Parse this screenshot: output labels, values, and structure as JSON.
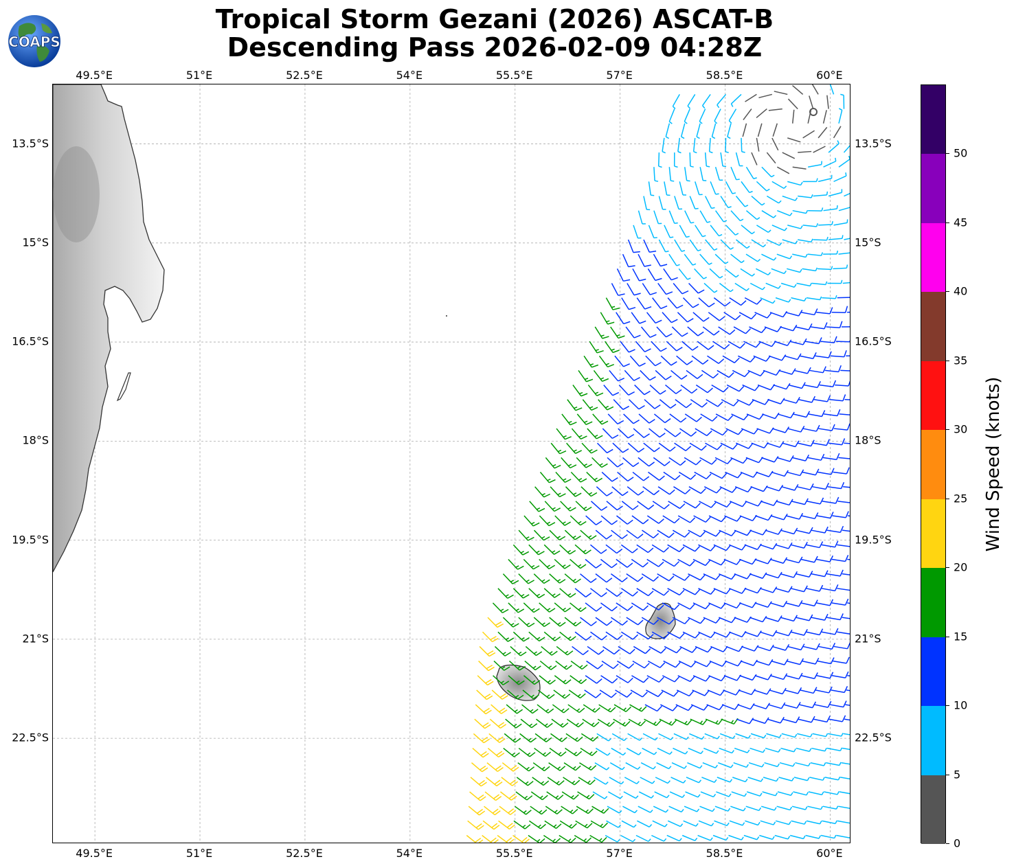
{
  "title": {
    "line1": "Tropical Storm Gezani (2026) ASCAT-B",
    "line2": "Descending Pass 2026-02-09 04:28Z"
  },
  "logo": {
    "text": "COAPS",
    "icon": "coaps-globe-logo"
  },
  "map": {
    "lon_range": [
      48.9,
      60.3
    ],
    "lat_range": [
      -24.1,
      -12.6
    ],
    "lon_ticks": [
      "49.5°E",
      "51°E",
      "52.5°E",
      "54°E",
      "55.5°E",
      "57°E",
      "58.5°E",
      "60°E"
    ],
    "lat_ticks": [
      "13.5°S",
      "15°S",
      "16.5°S",
      "18°S",
      "19.5°S",
      "21°S",
      "22.5°S"
    ],
    "grid": true,
    "land_features": [
      "madagascar-coast",
      "reunion-island",
      "mauritius-island"
    ]
  },
  "colorbar": {
    "label": "Wind Speed (knots)",
    "ticks": [
      "0",
      "5",
      "10",
      "15",
      "20",
      "25",
      "30",
      "35",
      "40",
      "45",
      "50"
    ],
    "bins": [
      {
        "range": [
          0,
          5
        ],
        "color": "#555555"
      },
      {
        "range": [
          5,
          10
        ],
        "color": "#00bbff"
      },
      {
        "range": [
          10,
          15
        ],
        "color": "#0033ff"
      },
      {
        "range": [
          15,
          20
        ],
        "color": "#009900"
      },
      {
        "range": [
          20,
          25
        ],
        "color": "#ffd511"
      },
      {
        "range": [
          25,
          30
        ],
        "color": "#ff8c0f"
      },
      {
        "range": [
          30,
          35
        ],
        "color": "#ff1111"
      },
      {
        "range": [
          35,
          40
        ],
        "color": "#833a2c"
      },
      {
        "range": [
          40,
          45
        ],
        "color": "#ff00ee"
      },
      {
        "range": [
          45,
          50
        ],
        "color": "#8800bb"
      },
      {
        "range": [
          50,
          55
        ],
        "color": "#330066"
      }
    ]
  },
  "chart_data": {
    "type": "wind-barb-map",
    "storm": "Tropical Storm Gezani",
    "sensor": "ASCAT-B",
    "pass": "Descending",
    "time": "2026-02-09 04:28Z",
    "units": "knots",
    "center_approx": {
      "lon": 59.4,
      "lat": -13.2
    },
    "swath_west_edge": [
      [
        57.9,
        -12.6
      ],
      [
        57.1,
        -15.0
      ],
      [
        56.2,
        -17.5
      ],
      [
        55.5,
        -19.5
      ],
      [
        55.0,
        -21.0
      ],
      [
        54.8,
        -24.1
      ]
    ]
  }
}
